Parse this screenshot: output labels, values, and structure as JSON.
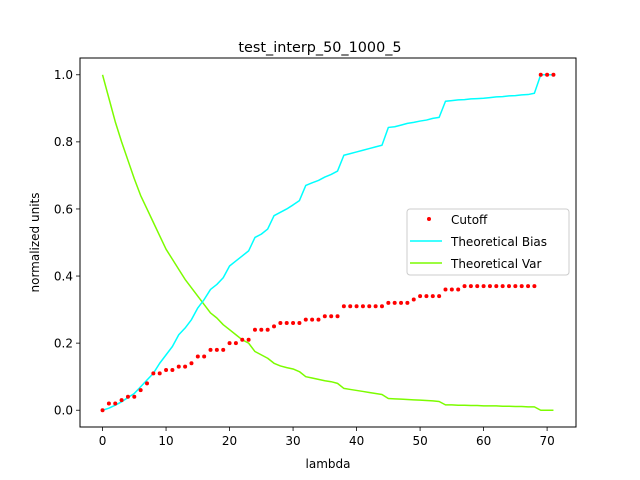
{
  "chart_data": {
    "type": "line",
    "title": "test_interp_50_1000_5",
    "xlabel": "lambda",
    "ylabel": "normalized units",
    "xlim": [
      -3.55,
      74.55
    ],
    "ylim": [
      -0.05,
      1.05
    ],
    "xticks": [
      0,
      10,
      20,
      30,
      40,
      50,
      60,
      70
    ],
    "xtick_labels": [
      "0",
      "10",
      "20",
      "30",
      "40",
      "50",
      "60",
      "70"
    ],
    "yticks": [
      0.0,
      0.2,
      0.4,
      0.6,
      0.8,
      1.0
    ],
    "ytick_labels": [
      "0.0",
      "0.2",
      "0.4",
      "0.6",
      "0.8",
      "1.0"
    ],
    "grid": false,
    "legend_position": "center-right",
    "series": [
      {
        "name": "Cutoff",
        "kind": "scatter",
        "color": "#ff0000",
        "x": [
          0,
          1,
          2,
          3,
          4,
          5,
          6,
          7,
          8,
          9,
          10,
          11,
          12,
          13,
          14,
          15,
          16,
          17,
          18,
          19,
          20,
          21,
          22,
          23,
          24,
          25,
          26,
          27,
          28,
          29,
          30,
          31,
          32,
          33,
          34,
          35,
          36,
          37,
          38,
          39,
          40,
          41,
          42,
          43,
          44,
          45,
          46,
          47,
          48,
          49,
          50,
          51,
          52,
          53,
          54,
          55,
          56,
          57,
          58,
          59,
          60,
          61,
          62,
          63,
          64,
          65,
          66,
          67,
          68,
          69,
          70,
          71
        ],
        "y": [
          0.0,
          0.02,
          0.02,
          0.03,
          0.04,
          0.04,
          0.06,
          0.08,
          0.11,
          0.11,
          0.12,
          0.12,
          0.13,
          0.13,
          0.14,
          0.16,
          0.16,
          0.18,
          0.18,
          0.18,
          0.2,
          0.2,
          0.21,
          0.21,
          0.24,
          0.24,
          0.24,
          0.25,
          0.26,
          0.26,
          0.26,
          0.26,
          0.27,
          0.27,
          0.27,
          0.28,
          0.28,
          0.28,
          0.31,
          0.31,
          0.31,
          0.31,
          0.31,
          0.31,
          0.31,
          0.32,
          0.32,
          0.32,
          0.32,
          0.33,
          0.34,
          0.34,
          0.34,
          0.34,
          0.36,
          0.36,
          0.36,
          0.37,
          0.37,
          0.37,
          0.37,
          0.37,
          0.37,
          0.37,
          0.37,
          0.37,
          0.37,
          0.37,
          0.37,
          1.0,
          1.0,
          1.0
        ]
      },
      {
        "name": "Theoretical Bias",
        "kind": "line",
        "color": "#00ffff",
        "x": [
          0,
          1,
          2,
          3,
          4,
          5,
          6,
          7,
          8,
          9,
          10,
          11,
          12,
          13,
          14,
          15,
          16,
          17,
          18,
          19,
          20,
          21,
          22,
          23,
          24,
          25,
          26,
          27,
          28,
          29,
          30,
          31,
          32,
          33,
          34,
          35,
          36,
          37,
          38,
          39,
          40,
          41,
          42,
          43,
          44,
          45,
          46,
          47,
          48,
          49,
          50,
          51,
          52,
          53,
          54,
          55,
          56,
          57,
          58,
          59,
          60,
          61,
          62,
          63,
          64,
          65,
          66,
          67,
          68,
          69,
          70,
          71
        ],
        "y": [
          0.0,
          0.006,
          0.015,
          0.025,
          0.038,
          0.05,
          0.07,
          0.09,
          0.11,
          0.14,
          0.165,
          0.19,
          0.225,
          0.245,
          0.27,
          0.305,
          0.33,
          0.36,
          0.375,
          0.395,
          0.43,
          0.445,
          0.46,
          0.475,
          0.515,
          0.525,
          0.54,
          0.58,
          0.59,
          0.6,
          0.612,
          0.625,
          0.67,
          0.678,
          0.685,
          0.695,
          0.703,
          0.713,
          0.76,
          0.765,
          0.77,
          0.775,
          0.78,
          0.785,
          0.79,
          0.843,
          0.845,
          0.85,
          0.855,
          0.858,
          0.862,
          0.865,
          0.87,
          0.873,
          0.921,
          0.923,
          0.925,
          0.926,
          0.928,
          0.929,
          0.93,
          0.932,
          0.934,
          0.935,
          0.937,
          0.938,
          0.94,
          0.941,
          0.945,
          1.0,
          1.0,
          1.0
        ]
      },
      {
        "name": "Theoretical Var",
        "kind": "line",
        "color": "#7cfc00",
        "x": [
          0,
          1,
          2,
          3,
          4,
          5,
          6,
          7,
          8,
          9,
          10,
          11,
          12,
          13,
          14,
          15,
          16,
          17,
          18,
          19,
          20,
          21,
          22,
          23,
          24,
          25,
          26,
          27,
          28,
          29,
          30,
          31,
          32,
          33,
          34,
          35,
          36,
          37,
          38,
          39,
          40,
          41,
          42,
          43,
          44,
          45,
          46,
          47,
          48,
          49,
          50,
          51,
          52,
          53,
          54,
          55,
          56,
          57,
          58,
          59,
          60,
          61,
          62,
          63,
          64,
          65,
          66,
          67,
          68,
          69,
          70,
          71
        ],
        "y": [
          1.0,
          0.93,
          0.86,
          0.8,
          0.745,
          0.69,
          0.64,
          0.6,
          0.56,
          0.52,
          0.48,
          0.45,
          0.42,
          0.39,
          0.365,
          0.34,
          0.315,
          0.29,
          0.275,
          0.255,
          0.24,
          0.225,
          0.21,
          0.2,
          0.175,
          0.165,
          0.155,
          0.14,
          0.132,
          0.127,
          0.123,
          0.115,
          0.1,
          0.096,
          0.092,
          0.088,
          0.085,
          0.08,
          0.065,
          0.062,
          0.059,
          0.056,
          0.053,
          0.05,
          0.047,
          0.035,
          0.034,
          0.033,
          0.032,
          0.031,
          0.03,
          0.029,
          0.028,
          0.026,
          0.016,
          0.016,
          0.015,
          0.015,
          0.014,
          0.014,
          0.013,
          0.013,
          0.013,
          0.012,
          0.012,
          0.011,
          0.011,
          0.01,
          0.01,
          0.0,
          0.0,
          0.0
        ]
      }
    ]
  }
}
